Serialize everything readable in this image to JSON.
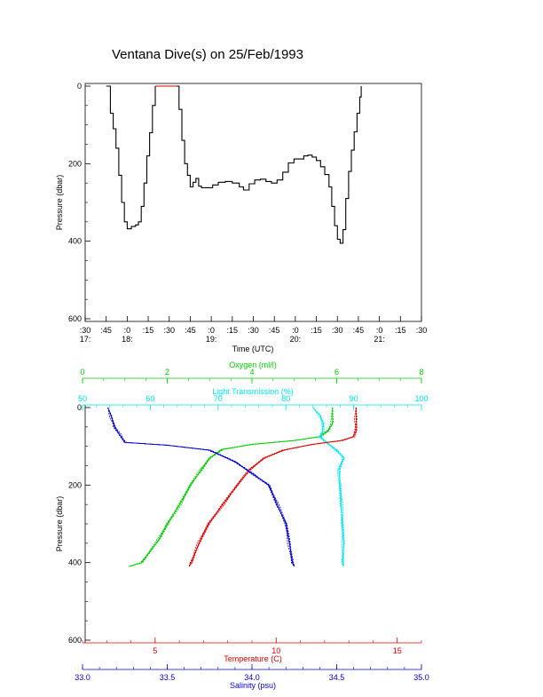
{
  "title": "Ventana Dive(s) on 25/Feb/1993",
  "chart_data": [
    {
      "type": "line",
      "xlabel": "Time (UTC)",
      "ylabel": "Pressure (dbar)",
      "x_ticks_minute": [
        ":30",
        ":45",
        ":0",
        ":15",
        ":30",
        ":45",
        ":0",
        ":15",
        ":30",
        ":45",
        ":0",
        ":15",
        ":30",
        ":45",
        ":0",
        ":15",
        ":30"
      ],
      "x_ticks_hour": [
        "17:",
        "18:",
        "19:",
        "20:",
        "21:"
      ],
      "hour_tick_index": [
        0,
        2,
        6,
        10,
        14
      ],
      "y_ticks": [
        "0",
        "200",
        "400",
        "600"
      ],
      "xlim_minutes_after_17_00": [
        30,
        270
      ],
      "ylim": [
        600,
        0
      ],
      "y_reversed": true,
      "series": [
        {
          "color": "#000000",
          "points": [
            [
              45,
              0
            ],
            [
              48,
              70
            ],
            [
              50,
              110
            ],
            [
              52,
              160
            ],
            [
              54,
              230
            ],
            [
              56,
              300
            ],
            [
              58,
              350
            ],
            [
              60,
              368
            ],
            [
              63,
              362
            ],
            [
              66,
              358
            ],
            [
              68,
              350
            ],
            [
              70,
              310
            ],
            [
              72,
              250
            ],
            [
              74,
              180
            ],
            [
              76,
              120
            ],
            [
              78,
              50
            ],
            [
              80,
              0
            ]
          ]
        },
        {
          "color": "#cc0000",
          "points": [
            [
              80,
              0
            ],
            [
              88,
              0
            ],
            [
              95,
              0
            ]
          ]
        },
        {
          "color": "#000000",
          "points": [
            [
              95,
              0
            ],
            [
              97,
              60
            ],
            [
              99,
              140
            ],
            [
              101,
              200
            ],
            [
              103,
              230
            ],
            [
              105,
              260
            ],
            [
              107,
              248
            ],
            [
              109,
              238
            ],
            [
              111,
              258
            ],
            [
              113,
              262
            ],
            [
              117,
              262
            ],
            [
              121,
              255
            ],
            [
              125,
              248
            ],
            [
              130,
              246
            ],
            [
              135,
              250
            ],
            [
              140,
              260
            ],
            [
              143,
              268
            ],
            [
              147,
              252
            ],
            [
              151,
              242
            ],
            [
              155,
              240
            ],
            [
              159,
              246
            ],
            [
              163,
              250
            ],
            [
              167,
              242
            ],
            [
              171,
              222
            ],
            [
              175,
              198
            ],
            [
              179,
              188
            ],
            [
              183,
              188
            ],
            [
              186,
              180
            ],
            [
              189,
              178
            ],
            [
              192,
              183
            ],
            [
              195,
              192
            ],
            [
              198,
              208
            ],
            [
              201,
              228
            ],
            [
              204,
              260
            ],
            [
              206,
              310
            ],
            [
              208,
              360
            ],
            [
              210,
              395
            ],
            [
              212,
              405
            ],
            [
              214,
              370
            ],
            [
              216,
              290
            ],
            [
              218,
              220
            ],
            [
              220,
              165
            ],
            [
              222,
              118
            ],
            [
              224,
              70
            ],
            [
              226,
              28
            ],
            [
              227,
              0
            ]
          ]
        }
      ]
    },
    {
      "type": "line",
      "ylabel": "Pressure (dbar)",
      "y_ticks": [
        "0",
        "200",
        "400",
        "600"
      ],
      "ylim": [
        600,
        0
      ],
      "y_reversed": true,
      "axes": {
        "oxygen": {
          "label": "Oxygen (ml/l)",
          "color": "#00cc00",
          "ticks": [
            "0",
            "2",
            "4",
            "6",
            "8"
          ],
          "lim": [
            0,
            8
          ]
        },
        "light": {
          "label": "Light Transmission (%)",
          "color": "#00e5ee",
          "ticks": [
            "50",
            "60",
            "70",
            "80",
            "90",
            "100"
          ],
          "lim": [
            50,
            100
          ]
        },
        "temperature": {
          "label": "Temperature (C)",
          "color": "#dd0000",
          "ticks": [
            "5",
            "10",
            "15"
          ],
          "lim": [
            2,
            16
          ]
        },
        "salinity": {
          "label": "Salinity (psu)",
          "color": "#0000cc",
          "ticks": [
            "33.0",
            "33.5",
            "34.0",
            "34.5",
            "35.0"
          ],
          "lim": [
            33.0,
            35.0
          ]
        }
      },
      "series": [
        {
          "axis": "oxygen",
          "color": "#00cc00",
          "points": [
            [
              5.9,
              0
            ],
            [
              5.9,
              40
            ],
            [
              5.8,
              60
            ],
            [
              5.6,
              75
            ],
            [
              5.0,
              85
            ],
            [
              4.0,
              95
            ],
            [
              3.3,
              108
            ],
            [
              3.0,
              130
            ],
            [
              2.8,
              160
            ],
            [
              2.55,
              200
            ],
            [
              2.3,
              250
            ],
            [
              2.0,
              300
            ],
            [
              1.8,
              340
            ],
            [
              1.4,
              400
            ],
            [
              1.1,
              410
            ]
          ]
        },
        {
          "axis": "light",
          "color": "#00e5ee",
          "points": [
            [
              84.0,
              0
            ],
            [
              85.0,
              20
            ],
            [
              85.5,
              40
            ],
            [
              85.5,
              60
            ],
            [
              85.0,
              75
            ],
            [
              86.0,
              90
            ],
            [
              87.5,
              110
            ],
            [
              88.5,
              130
            ],
            [
              87.8,
              160
            ],
            [
              88.0,
              200
            ],
            [
              88.2,
              250
            ],
            [
              88.3,
              300
            ],
            [
              88.5,
              350
            ],
            [
              88.4,
              400
            ],
            [
              88.5,
              410
            ]
          ]
        },
        {
          "axis": "temperature",
          "color": "#dd0000",
          "points": [
            [
              13.3,
              0
            ],
            [
              13.3,
              30
            ],
            [
              13.3,
              60
            ],
            [
              13.2,
              75
            ],
            [
              12.7,
              85
            ],
            [
              11.5,
              95
            ],
            [
              10.3,
              110
            ],
            [
              9.5,
              130
            ],
            [
              8.9,
              160
            ],
            [
              8.4,
              200
            ],
            [
              7.8,
              250
            ],
            [
              7.2,
              300
            ],
            [
              6.8,
              350
            ],
            [
              6.5,
              400
            ],
            [
              6.4,
              410
            ]
          ]
        },
        {
          "axis": "salinity",
          "color": "#0000cc",
          "points": [
            [
              33.15,
              0
            ],
            [
              33.17,
              25
            ],
            [
              33.19,
              50
            ],
            [
              33.22,
              70
            ],
            [
              33.25,
              90
            ],
            [
              33.5,
              97
            ],
            [
              33.75,
              110
            ],
            [
              33.9,
              140
            ],
            [
              34.0,
              170
            ],
            [
              34.1,
              200
            ],
            [
              34.15,
              250
            ],
            [
              34.2,
              300
            ],
            [
              34.22,
              350
            ],
            [
              34.24,
              400
            ],
            [
              34.25,
              410
            ]
          ]
        }
      ]
    }
  ]
}
